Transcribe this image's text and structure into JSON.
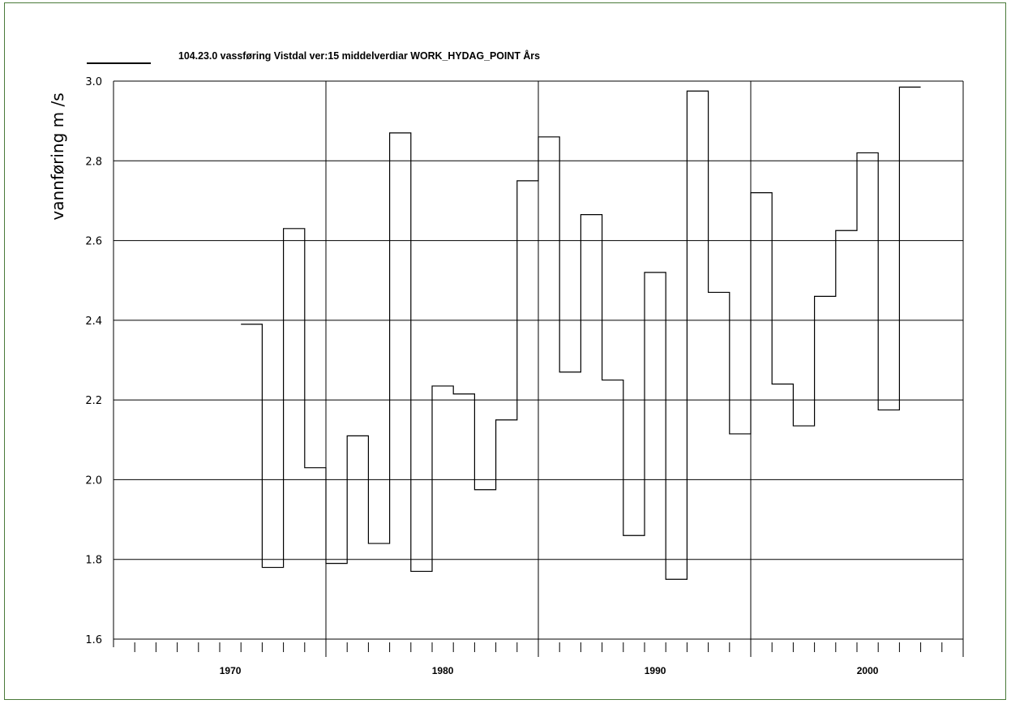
{
  "chart_data": {
    "type": "line",
    "step": true,
    "title": "104.23.0  vassføring  Vistdal  ver:15  middelverdiar  WORK_HYDAG_POINT  Års",
    "xlabel": "",
    "ylabel": "vannføring    m /s",
    "ylim": [
      1.6,
      3.0
    ],
    "xlim": [
      1965,
      2005
    ],
    "yticks": [
      "1.6",
      "1.8",
      "2.0",
      "2.2",
      "2.4",
      "2.6",
      "2.8",
      "3.0"
    ],
    "xticks": [
      {
        "value": 1970,
        "label": "1970"
      },
      {
        "value": 1980,
        "label": "1980"
      },
      {
        "value": 1990,
        "label": "1990"
      },
      {
        "value": 2000,
        "label": "2000"
      }
    ],
    "grid": true,
    "legend": "top-left",
    "line_color": "#000000",
    "x": [
      1971,
      1972,
      1973,
      1974,
      1975,
      1976,
      1977,
      1978,
      1979,
      1980,
      1981,
      1982,
      1983,
      1984,
      1985,
      1986,
      1987,
      1988,
      1989,
      1990,
      1991,
      1992,
      1993,
      1994,
      1995,
      1996,
      1997,
      1998,
      1999,
      2000,
      2001,
      2002
    ],
    "values": [
      2.39,
      1.78,
      2.63,
      2.03,
      1.79,
      2.11,
      1.84,
      2.87,
      1.77,
      2.235,
      2.215,
      1.975,
      2.15,
      2.75,
      2.86,
      2.27,
      2.665,
      2.25,
      1.86,
      2.52,
      1.75,
      2.975,
      2.47,
      2.115,
      2.72,
      2.24,
      2.135,
      2.46,
      2.625,
      2.82,
      2.175,
      2.985
    ]
  }
}
